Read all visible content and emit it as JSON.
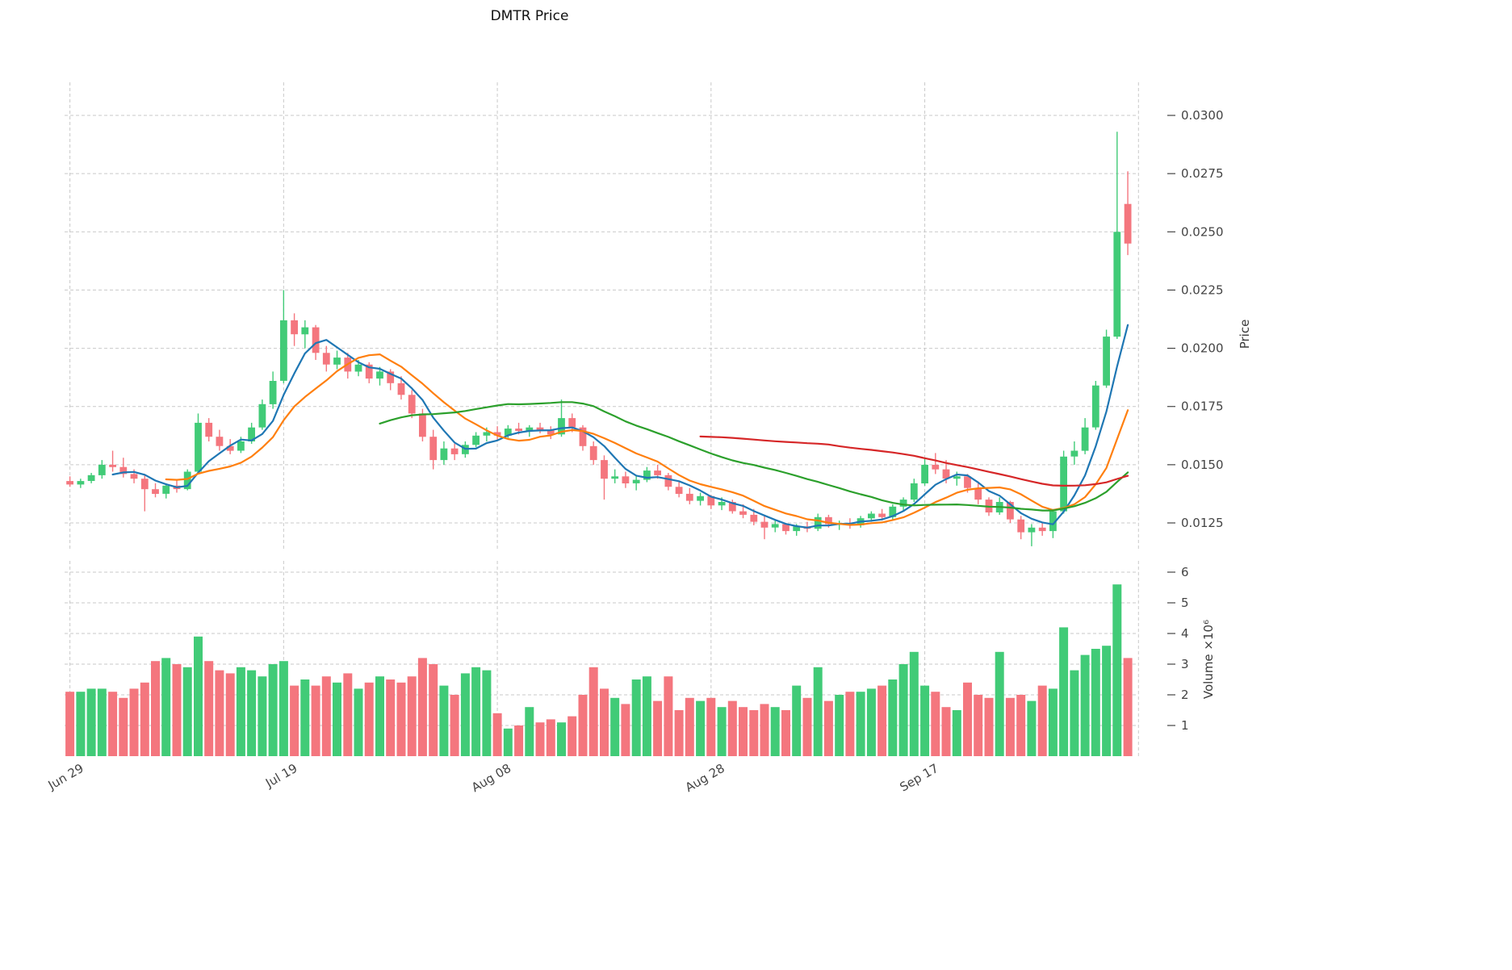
{
  "title": "DMTR Price",
  "chart_data": {
    "type": "candlestick",
    "panels": [
      "price",
      "volume"
    ],
    "price_axis": {
      "label": "Price",
      "side": "right",
      "ticks": [
        "0.0125",
        "0.0150",
        "0.0175",
        "0.0200",
        "0.0225",
        "0.0250",
        "0.0275",
        "0.0300"
      ]
    },
    "volume_axis": {
      "label": "Volume ×10⁶",
      "side": "right",
      "ticks": [
        "1",
        "2",
        "3",
        "4",
        "5",
        "6"
      ]
    },
    "x_axis": {
      "ticks": [
        {
          "index": 0,
          "label": "Jun 29"
        },
        {
          "index": 20,
          "label": "Jul 19"
        },
        {
          "index": 40,
          "label": "Aug 08"
        },
        {
          "index": 60,
          "label": "Aug 28"
        },
        {
          "index": 80,
          "label": "Sep 17"
        },
        {
          "index": 100,
          "label": ""
        }
      ]
    },
    "moving_averages": [
      {
        "window": 5,
        "color": "#1f77b4"
      },
      {
        "window": 10,
        "color": "#ff7f0e"
      },
      {
        "window": 30,
        "color": "#2ca02c"
      },
      {
        "window": 60,
        "color": "#d62728"
      }
    ],
    "colors": {
      "up": "#41cb77",
      "down": "#f4767e",
      "grid": "#c9c9c9",
      "tick_text": "#444444"
    },
    "candles": {
      "open": [
        0.0143,
        0.01415,
        0.0143,
        0.01455,
        0.015,
        0.0149,
        0.0146,
        0.0144,
        0.01395,
        0.01375,
        0.0141,
        0.01395,
        0.0147,
        0.0168,
        0.0162,
        0.0158,
        0.0156,
        0.016,
        0.0166,
        0.0176,
        0.0186,
        0.0212,
        0.0206,
        0.0209,
        0.0198,
        0.0193,
        0.0196,
        0.019,
        0.0193,
        0.0187,
        0.019,
        0.0185,
        0.018,
        0.0172,
        0.0162,
        0.0152,
        0.0157,
        0.01545,
        0.01585,
        0.01625,
        0.0164,
        0.01625,
        0.01655,
        0.01645,
        0.0166,
        0.0165,
        0.0163,
        0.017,
        0.0166,
        0.0158,
        0.0152,
        0.0144,
        0.0145,
        0.0142,
        0.01435,
        0.01475,
        0.01455,
        0.01405,
        0.01375,
        0.01345,
        0.01365,
        0.01325,
        0.0134,
        0.013,
        0.01285,
        0.01255,
        0.0123,
        0.01245,
        0.01215,
        0.01235,
        0.01225,
        0.01275,
        0.01245,
        0.0125,
        0.0124,
        0.0127,
        0.0129,
        0.01275,
        0.0132,
        0.0135,
        0.0142,
        0.015,
        0.0148,
        0.0144,
        0.0145,
        0.014,
        0.0135,
        0.01295,
        0.0134,
        0.01265,
        0.0121,
        0.0123,
        0.01215,
        0.013,
        0.01535,
        0.0156,
        0.0166,
        0.0184,
        0.0205,
        0.0262
      ],
      "high": [
        0.0145,
        0.0144,
        0.01465,
        0.0152,
        0.0156,
        0.0153,
        0.0148,
        0.0146,
        0.0142,
        0.0142,
        0.01435,
        0.0148,
        0.0172,
        0.017,
        0.0165,
        0.0161,
        0.0162,
        0.0168,
        0.0178,
        0.019,
        0.0225,
        0.0215,
        0.0212,
        0.021,
        0.0201,
        0.0199,
        0.0198,
        0.0195,
        0.0194,
        0.0192,
        0.0191,
        0.0188,
        0.0182,
        0.0174,
        0.0165,
        0.016,
        0.0159,
        0.016,
        0.0164,
        0.0166,
        0.01665,
        0.0167,
        0.0168,
        0.0167,
        0.0168,
        0.01665,
        0.0178,
        0.0172,
        0.0167,
        0.016,
        0.0154,
        0.0148,
        0.0147,
        0.0145,
        0.0149,
        0.015,
        0.01465,
        0.0143,
        0.014,
        0.0138,
        0.0137,
        0.0136,
        0.0135,
        0.0133,
        0.0131,
        0.0128,
        0.0126,
        0.0125,
        0.01245,
        0.01255,
        0.0129,
        0.01285,
        0.0126,
        0.0127,
        0.0128,
        0.013,
        0.0131,
        0.0133,
        0.0136,
        0.0144,
        0.0153,
        0.0155,
        0.0152,
        0.0147,
        0.0146,
        0.0142,
        0.0136,
        0.0136,
        0.01345,
        0.0128,
        0.01245,
        0.01255,
        0.0131,
        0.0156,
        0.016,
        0.017,
        0.0186,
        0.0208,
        0.0293,
        0.0276
      ],
      "low": [
        0.01405,
        0.014,
        0.0142,
        0.0144,
        0.0147,
        0.01445,
        0.0142,
        0.013,
        0.0136,
        0.01355,
        0.0138,
        0.0139,
        0.0146,
        0.016,
        0.0156,
        0.01545,
        0.0155,
        0.0159,
        0.0165,
        0.0174,
        0.0185,
        0.0201,
        0.02,
        0.0195,
        0.019,
        0.0191,
        0.0187,
        0.0188,
        0.0185,
        0.0184,
        0.0182,
        0.0178,
        0.017,
        0.016,
        0.0148,
        0.015,
        0.0152,
        0.0153,
        0.01575,
        0.016,
        0.01605,
        0.01615,
        0.0163,
        0.0162,
        0.01635,
        0.0161,
        0.0162,
        0.0164,
        0.0156,
        0.015,
        0.0135,
        0.0142,
        0.014,
        0.0139,
        0.01425,
        0.0144,
        0.0139,
        0.0136,
        0.0133,
        0.01325,
        0.0131,
        0.01305,
        0.0129,
        0.0127,
        0.0124,
        0.0118,
        0.0121,
        0.012,
        0.01195,
        0.0121,
        0.01215,
        0.0123,
        0.0122,
        0.01225,
        0.0123,
        0.01255,
        0.0126,
        0.01265,
        0.013,
        0.0134,
        0.0141,
        0.0146,
        0.0142,
        0.0141,
        0.0138,
        0.0133,
        0.0128,
        0.01285,
        0.0125,
        0.0118,
        0.0115,
        0.01195,
        0.01185,
        0.0129,
        0.015,
        0.01545,
        0.0165,
        0.0183,
        0.0204,
        0.024
      ],
      "close": [
        0.01415,
        0.0143,
        0.01455,
        0.015,
        0.0149,
        0.0146,
        0.0144,
        0.01395,
        0.01375,
        0.0141,
        0.01395,
        0.0147,
        0.0168,
        0.0162,
        0.0158,
        0.0156,
        0.016,
        0.0166,
        0.0176,
        0.0186,
        0.0212,
        0.0206,
        0.0209,
        0.0198,
        0.0193,
        0.0196,
        0.019,
        0.0193,
        0.0187,
        0.019,
        0.0185,
        0.018,
        0.0172,
        0.0162,
        0.0152,
        0.0157,
        0.01545,
        0.01585,
        0.01625,
        0.0164,
        0.01625,
        0.01655,
        0.01645,
        0.0166,
        0.0165,
        0.0163,
        0.017,
        0.0166,
        0.0158,
        0.0152,
        0.0144,
        0.0145,
        0.0142,
        0.01435,
        0.01475,
        0.01455,
        0.01405,
        0.01375,
        0.01345,
        0.01365,
        0.01325,
        0.0134,
        0.013,
        0.01285,
        0.01255,
        0.0123,
        0.01245,
        0.01215,
        0.01235,
        0.01225,
        0.01275,
        0.01245,
        0.0125,
        0.0124,
        0.0127,
        0.0129,
        0.01275,
        0.0132,
        0.0135,
        0.0142,
        0.015,
        0.0148,
        0.0144,
        0.0145,
        0.014,
        0.0135,
        0.01295,
        0.0134,
        0.01265,
        0.0121,
        0.0123,
        0.01215,
        0.013,
        0.01535,
        0.0156,
        0.0166,
        0.0184,
        0.0205,
        0.025,
        0.0245
      ],
      "volume_millions": [
        2.1,
        2.1,
        2.2,
        2.2,
        2.1,
        1.9,
        2.2,
        2.4,
        3.1,
        3.2,
        3.0,
        2.9,
        3.9,
        3.1,
        2.8,
        2.7,
        2.9,
        2.8,
        2.6,
        3.0,
        3.1,
        2.3,
        2.5,
        2.3,
        2.6,
        2.4,
        2.7,
        2.2,
        2.4,
        2.6,
        2.5,
        2.4,
        2.6,
        3.2,
        3.0,
        2.3,
        2.0,
        2.7,
        2.9,
        2.8,
        1.4,
        0.9,
        1.0,
        1.6,
        1.1,
        1.2,
        1.1,
        1.3,
        2.0,
        2.9,
        2.2,
        1.9,
        1.7,
        2.5,
        2.6,
        1.8,
        2.6,
        1.5,
        1.9,
        1.8,
        1.9,
        1.6,
        1.8,
        1.6,
        1.5,
        1.7,
        1.6,
        1.5,
        2.3,
        1.9,
        2.9,
        1.8,
        2.0,
        2.1,
        2.1,
        2.2,
        2.3,
        2.5,
        3.0,
        3.4,
        2.3,
        2.1,
        1.6,
        1.5,
        2.4,
        2.0,
        1.9,
        3.4,
        1.9,
        2.0,
        1.8,
        2.3,
        2.2,
        4.2,
        2.8,
        3.3,
        3.5,
        3.6,
        5.6,
        3.2
      ]
    }
  }
}
